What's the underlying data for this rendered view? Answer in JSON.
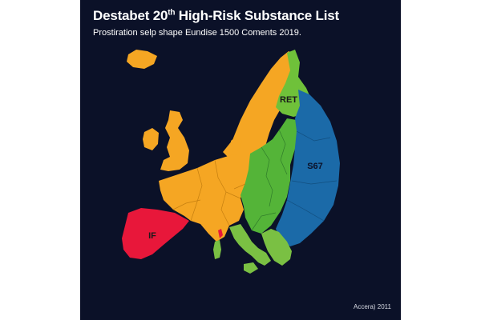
{
  "title": {
    "main": "Destabet 20",
    "superscript": "th",
    "rest": " High-Risk Substance List"
  },
  "subtitle": "Prostiration selp shape Eundise 1500 Coments 2019.",
  "credit": "Accera) 2011",
  "regions": [
    {
      "name": "western-central-europe",
      "label": "",
      "color": "#f5a623"
    },
    {
      "name": "spain-portugal",
      "label": "IF",
      "color": "#e8173a"
    },
    {
      "name": "finland-north",
      "label": "RET",
      "color": "#6fc13a"
    },
    {
      "name": "central-eastern-belt",
      "label": "",
      "color": "#54b438"
    },
    {
      "name": "east-russia-ukraine",
      "label": "S67",
      "color": "#1b6aa8"
    },
    {
      "name": "italy-balkans",
      "label": "",
      "color": "#7ac043"
    }
  ],
  "colors": {
    "background": "#0b1128",
    "orange": "#f5a623",
    "red": "#e8173a",
    "green": "#54b438",
    "light_green": "#7ac043",
    "blue": "#1b6aa8",
    "borders": "#c57f10"
  }
}
